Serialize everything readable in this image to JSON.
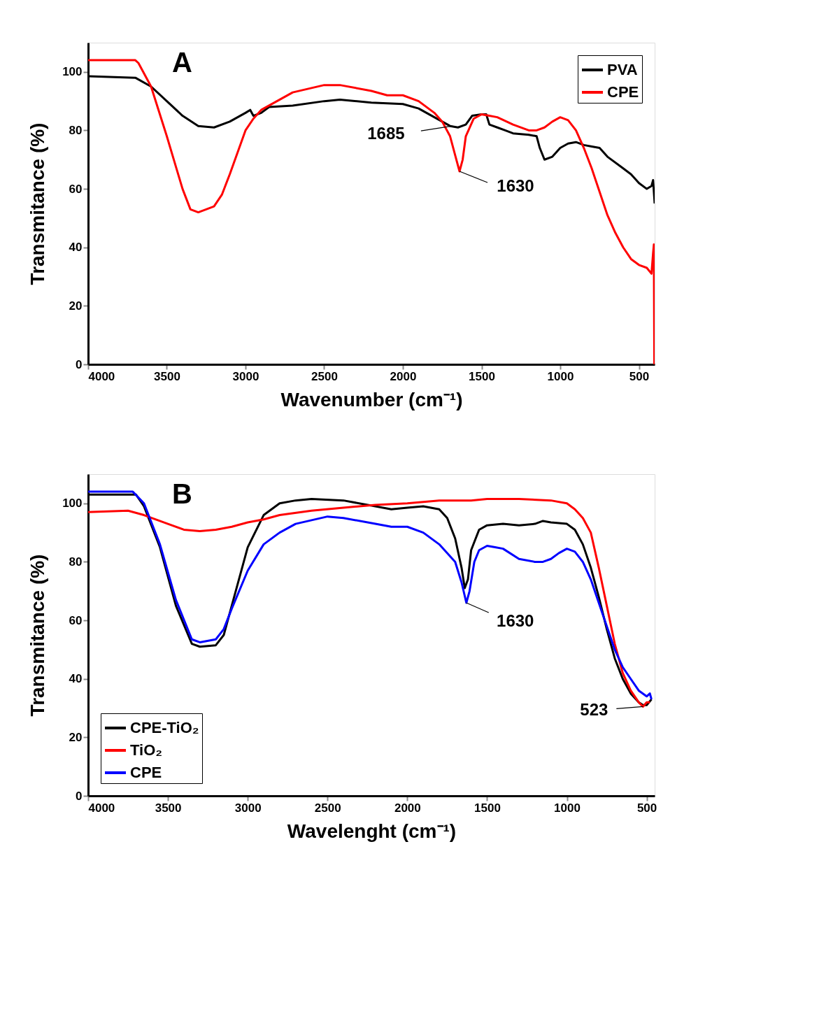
{
  "chart_data": [
    {
      "type": "line",
      "xlabel": "Wavenumber (cm⁻¹)",
      "ylabel": "Transmitance (%)",
      "xlim": [
        4000,
        400
      ],
      "ylim": [
        0,
        110
      ],
      "xticks": [
        4000,
        3500,
        3000,
        2500,
        2000,
        1500,
        1000,
        500
      ],
      "yticks": [
        0,
        20,
        40,
        60,
        80,
        100
      ],
      "grid": false,
      "legend": "top right",
      "line_style": "solid",
      "annotations": [
        "A",
        {
          "text": "1685",
          "x": 1685,
          "y": 81.5
        },
        {
          "text": "1630",
          "x": 1640,
          "y": 66
        }
      ],
      "series": [
        {
          "name": "PVA",
          "color": "#000000",
          "x": [
            4000,
            3700,
            3600,
            3500,
            3400,
            3300,
            3200,
            3100,
            3000,
            2970,
            2950,
            2900,
            2850,
            2700,
            2500,
            2400,
            2200,
            2000,
            1900,
            1800,
            1700,
            1650,
            1600,
            1560,
            1500,
            1470,
            1450,
            1400,
            1350,
            1300,
            1200,
            1150,
            1130,
            1100,
            1050,
            1000,
            950,
            900,
            850,
            800,
            750,
            700,
            600,
            550,
            500,
            450,
            420,
            410,
            400
          ],
          "values": [
            98.5,
            98,
            95,
            90,
            85,
            81.5,
            81,
            83,
            86,
            87,
            85,
            86,
            88,
            88.5,
            90,
            90.5,
            89.5,
            89,
            87.5,
            84.5,
            81.5,
            81,
            82,
            85,
            85.5,
            85.5,
            82,
            81,
            80,
            79,
            78.5,
            78,
            74,
            70,
            71,
            74,
            75.5,
            76,
            75,
            74.5,
            74,
            71,
            67,
            65,
            62,
            60,
            61,
            63,
            55
          ]
        },
        {
          "name": "CPE",
          "color": "#ff0000",
          "x": [
            4000,
            3700,
            3680,
            3600,
            3500,
            3400,
            3350,
            3300,
            3200,
            3150,
            3100,
            3000,
            2950,
            2900,
            2800,
            2700,
            2500,
            2400,
            2200,
            2100,
            2000,
            1900,
            1800,
            1750,
            1700,
            1660,
            1640,
            1620,
            1600,
            1550,
            1500,
            1450,
            1400,
            1300,
            1200,
            1150,
            1100,
            1050,
            1000,
            950,
            900,
            850,
            800,
            750,
            700,
            650,
            600,
            550,
            500,
            450,
            420,
            410,
            405,
            402
          ],
          "values": [
            104,
            104,
            103,
            95,
            78,
            60,
            53,
            52,
            54,
            58,
            65,
            80,
            84,
            87,
            90,
            93,
            95.5,
            95.5,
            93.5,
            92,
            92,
            90,
            86,
            83,
            78,
            70,
            66,
            70,
            78,
            84,
            85.5,
            85,
            84.5,
            82,
            80,
            80,
            81,
            83,
            84.5,
            83.5,
            80,
            74,
            67,
            59,
            51,
            45,
            40,
            36,
            34,
            33,
            31,
            38,
            41,
            0
          ]
        }
      ]
    },
    {
      "type": "line",
      "xlabel": "Wavelenght (cm⁻¹)",
      "ylabel": "Transmitance (%)",
      "xlim": [
        4000,
        450
      ],
      "ylim": [
        0,
        110
      ],
      "xticks": [
        4000,
        3500,
        3000,
        2500,
        2000,
        1500,
        1000,
        500
      ],
      "yticks": [
        0,
        20,
        40,
        60,
        80,
        100
      ],
      "grid": false,
      "legend": "bottom left",
      "line_style": "solid",
      "annotations": [
        "B",
        {
          "text": "1630",
          "x": 1630,
          "y": 66
        },
        {
          "text": "523",
          "x": 523,
          "y": 30.5
        }
      ],
      "series": [
        {
          "name": "CPE-TiO₂",
          "color": "#000000",
          "x": [
            4000,
            3700,
            3650,
            3550,
            3450,
            3350,
            3300,
            3200,
            3150,
            3100,
            3000,
            2900,
            2800,
            2700,
            2600,
            2400,
            2200,
            2100,
            2000,
            1900,
            1800,
            1750,
            1700,
            1660,
            1640,
            1620,
            1600,
            1550,
            1500,
            1400,
            1300,
            1200,
            1150,
            1100,
            1000,
            950,
            900,
            850,
            800,
            750,
            700,
            650,
            600,
            550,
            523,
            500,
            470
          ],
          "values": [
            103,
            103,
            99,
            85,
            65,
            52,
            51,
            51.5,
            55,
            65,
            85,
            96,
            100,
            101,
            101.5,
            101,
            99,
            98,
            98.5,
            99,
            98,
            95,
            88,
            78,
            71,
            74,
            84,
            91,
            92.5,
            93,
            92.5,
            93,
            94,
            93.5,
            93,
            91,
            86,
            78,
            68,
            57,
            47,
            40,
            35,
            32,
            31,
            31,
            33
          ]
        },
        {
          "name": "TiO₂",
          "color": "#ff0000",
          "x": [
            4000,
            3750,
            3650,
            3500,
            3400,
            3300,
            3200,
            3100,
            3000,
            2900,
            2800,
            2600,
            2400,
            2200,
            2000,
            1800,
            1600,
            1500,
            1300,
            1100,
            1000,
            950,
            900,
            850,
            800,
            750,
            700,
            650,
            600,
            550,
            523,
            500,
            480
          ],
          "values": [
            97,
            97.5,
            96,
            93,
            91,
            90.5,
            91,
            92,
            93.5,
            94.5,
            96,
            97.5,
            98.5,
            99.5,
            100,
            101,
            101,
            101.5,
            101.5,
            101,
            100,
            98,
            95,
            90,
            78,
            65,
            52,
            42,
            36,
            32,
            30.5,
            32,
            32
          ]
        },
        {
          "name": "CPE",
          "color": "#0000ff",
          "x": [
            4000,
            3720,
            3650,
            3550,
            3450,
            3350,
            3300,
            3200,
            3150,
            3100,
            3000,
            2900,
            2800,
            2700,
            2500,
            2400,
            2200,
            2100,
            2000,
            1900,
            1800,
            1700,
            1660,
            1630,
            1610,
            1580,
            1550,
            1500,
            1450,
            1400,
            1300,
            1200,
            1150,
            1100,
            1050,
            1000,
            950,
            900,
            850,
            800,
            750,
            700,
            650,
            600,
            550,
            500,
            480,
            470
          ],
          "values": [
            104,
            104,
            100,
            86,
            67,
            53.5,
            52.5,
            53.5,
            57,
            64,
            77,
            86,
            90,
            93,
            95.5,
            95,
            93,
            92,
            92,
            90,
            86,
            80,
            73,
            66,
            70,
            80,
            84,
            85.5,
            85,
            84.5,
            81,
            80,
            80,
            81,
            83,
            84.5,
            83.5,
            80,
            74,
            66,
            58,
            50,
            44,
            40,
            36,
            34,
            35,
            33
          ]
        }
      ]
    }
  ]
}
